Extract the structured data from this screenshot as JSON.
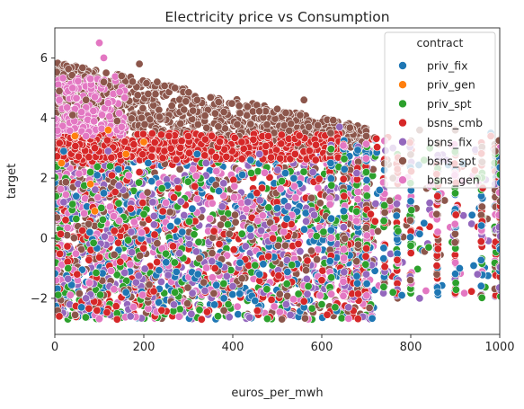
{
  "chart_data": {
    "type": "scatter",
    "title": "Electricity price vs Consumption",
    "xlabel": "euros_per_mwh",
    "ylabel": "target",
    "xlim": [
      0,
      1000
    ],
    "ylim": [
      -3.2,
      7.0
    ],
    "x_ticks": [
      0,
      200,
      400,
      600,
      800,
      1000
    ],
    "y_ticks": [
      -2,
      0,
      2,
      4,
      6
    ],
    "grid": false,
    "legend": {
      "title": "contract",
      "placement": "top-right"
    },
    "series": [
      {
        "name": "priv_fix",
        "color": "#1f77b4",
        "x": [
          20,
          60,
          110,
          160,
          210,
          260,
          320,
          380,
          440,
          500,
          560,
          620,
          680,
          730,
          780,
          830,
          910,
          980,
          250,
          460
        ],
        "y": [
          2.9,
          -2.3,
          1.5,
          -1.8,
          2.5,
          0.4,
          2.8,
          -2.0,
          2.6,
          1.0,
          -2.3,
          2.5,
          -1.5,
          1.6,
          -1.9,
          0.5,
          -1.0,
          3.5,
          -0.8,
          -1.2
        ]
      },
      {
        "name": "priv_gen",
        "color": "#ff7f0e",
        "x": [
          15,
          45,
          80,
          120,
          160,
          200,
          90
        ],
        "y": [
          2.5,
          3.4,
          1.8,
          3.6,
          2.8,
          3.2,
          0.9
        ]
      },
      {
        "name": "priv_spt",
        "color": "#2ca02c",
        "x": [
          30,
          80,
          140,
          200,
          270,
          330,
          390,
          450,
          510,
          570,
          630,
          700,
          760,
          830,
          900,
          950,
          990,
          600
        ],
        "y": [
          -1.0,
          2.2,
          -2.5,
          0.8,
          -1.8,
          2.5,
          -2.2,
          -0.9,
          1.9,
          -1.6,
          -2.3,
          2.2,
          -1.8,
          2.6,
          1.5,
          2.0,
          2.8,
          -2.2
        ]
      },
      {
        "name": "bsns_cmb",
        "color": "#d62728",
        "x": [
          10,
          50,
          90,
          140,
          190,
          240,
          300,
          360,
          420,
          480,
          540,
          600,
          650,
          710,
          770,
          860,
          980,
          330,
          560
        ],
        "y": [
          -2.6,
          -1.2,
          3.0,
          -2.7,
          2.2,
          -2.4,
          3.4,
          -1.0,
          3.2,
          -0.6,
          2.8,
          -1.4,
          1.4,
          0.8,
          2.3,
          1.4,
          3.4,
          -2.7,
          -2.1
        ]
      },
      {
        "name": "bsns_fix",
        "color": "#9467bd",
        "x": [
          20,
          70,
          120,
          170,
          220,
          280,
          340,
          400,
          460,
          520,
          580,
          640,
          700,
          760,
          820,
          880,
          950,
          660
        ],
        "y": [
          1.2,
          -2.0,
          2.9,
          -2.6,
          1.2,
          -0.5,
          2.5,
          -1.6,
          2.8,
          -2.2,
          2.2,
          3.7,
          -1.2,
          3.0,
          -2.0,
          2.6,
          -1.2,
          -2.3
        ]
      },
      {
        "name": "bsns_spt",
        "color": "#8c564b",
        "x": [
          10,
          40,
          70,
          110,
          150,
          190,
          230,
          270,
          320,
          380,
          440,
          500,
          560,
          620,
          700,
          760,
          820,
          900,
          990,
          140,
          210,
          380
        ],
        "y": [
          4.9,
          4.1,
          4.6,
          5.2,
          5.4,
          5.8,
          5.2,
          5.0,
          4.6,
          4.2,
          3.8,
          4.3,
          4.6,
          3.5,
          3.4,
          2.0,
          3.6,
          3.6,
          2.9,
          3.9,
          4.8,
          -2.4
        ]
      },
      {
        "name": "bsns_gen",
        "color": "#e377c2",
        "x": [
          10,
          30,
          60,
          80,
          100,
          110,
          90,
          120,
          140,
          150,
          40,
          70
        ],
        "y": [
          4.6,
          4.9,
          4.2,
          5.3,
          6.5,
          6.0,
          4.7,
          4.5,
          3.6,
          3.7,
          5.0,
          3.4
        ]
      }
    ]
  }
}
